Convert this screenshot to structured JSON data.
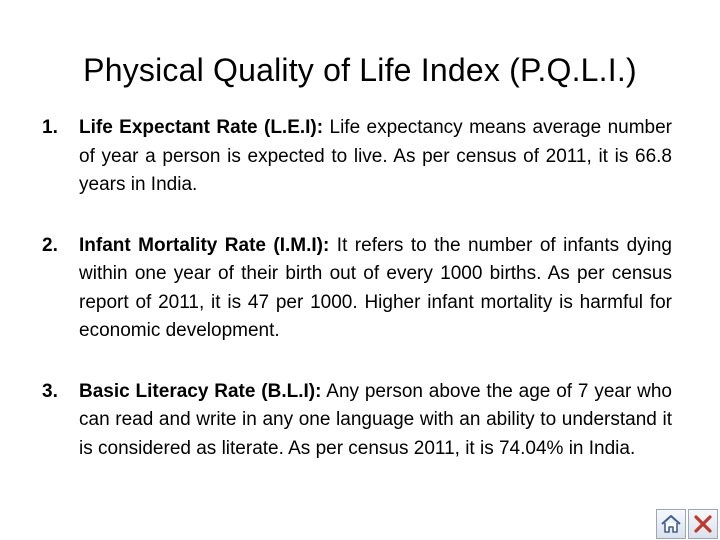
{
  "slide": {
    "title": "Physical Quality of Life Index (P.Q.L.I.)"
  },
  "items": [
    {
      "number": "1.",
      "term": "Life Expectant Rate (L.E.I):",
      "text": "Life expectancy means average number of year a person is expected to live. As per census of 2011, it is 66.8 years in India."
    },
    {
      "number": "2.",
      "term": "Infant Mortality Rate (I.M.I):",
      "text": "It refers to the number of infants dying within one year of their birth out of every 1000 births. As per census report of 2011, it is 47 per 1000. Higher infant mortality is harmful for economic development."
    },
    {
      "number": "3.",
      "term": "Basic Literacy Rate (B.L.I):",
      "text": "Any person above the age of 7 year who can read and write in any one language with an ability to understand it is considered as literate. As per census 2011, it is 74.04% in India."
    }
  ],
  "nav": {
    "home_icon": "home-icon",
    "close_icon": "close-icon",
    "close_color": "#c0392b",
    "home_color": "#4a6fa5"
  }
}
